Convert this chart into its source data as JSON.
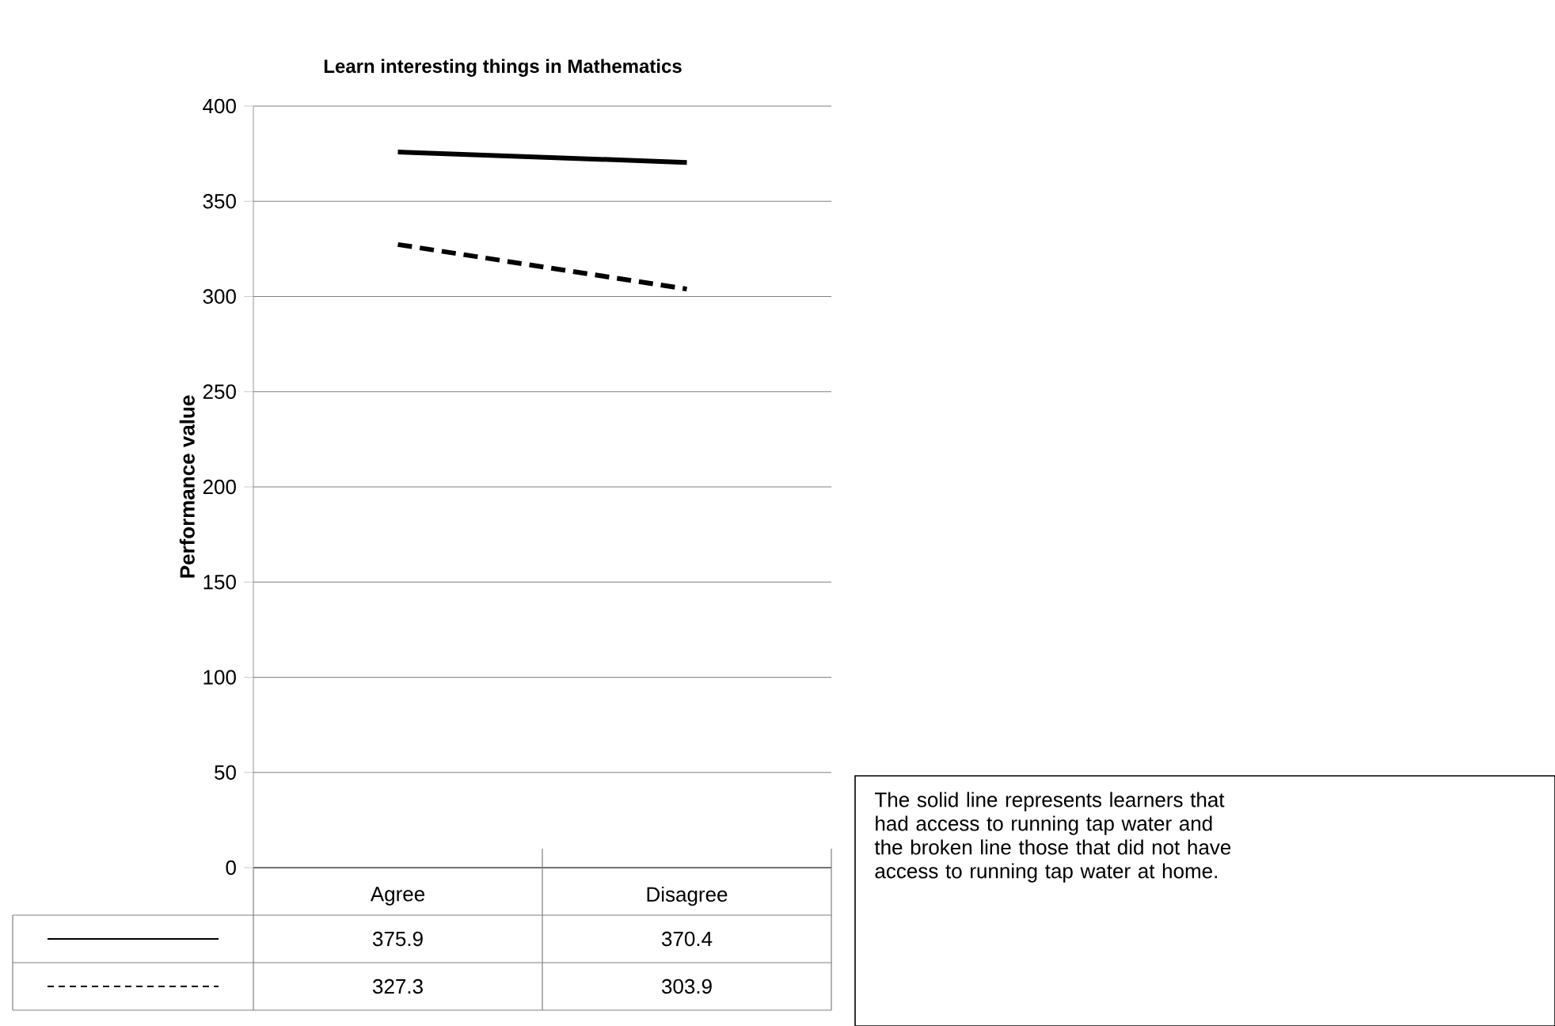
{
  "chart_data": {
    "type": "line",
    "title": "Learn interesting things in Mathematics",
    "ylabel": "Performance value",
    "categories": [
      "Agree",
      "Disagree"
    ],
    "series": [
      {
        "color": "#000000",
        "line_style": "solid",
        "values": [
          375.9,
          370.4
        ]
      },
      {
        "color": "#000000",
        "line_style": "dashed",
        "values": [
          327.3,
          303.9
        ]
      }
    ],
    "ylim": [
      0,
      400
    ],
    "yticks": [
      0,
      50,
      100,
      150,
      200,
      250,
      300,
      350,
      400
    ],
    "grid": "y",
    "data_labels": true,
    "annotations": [
      "The solid line represents learners that had access to running tap water and the broken line those that did not have access to running tap water at home."
    ]
  }
}
